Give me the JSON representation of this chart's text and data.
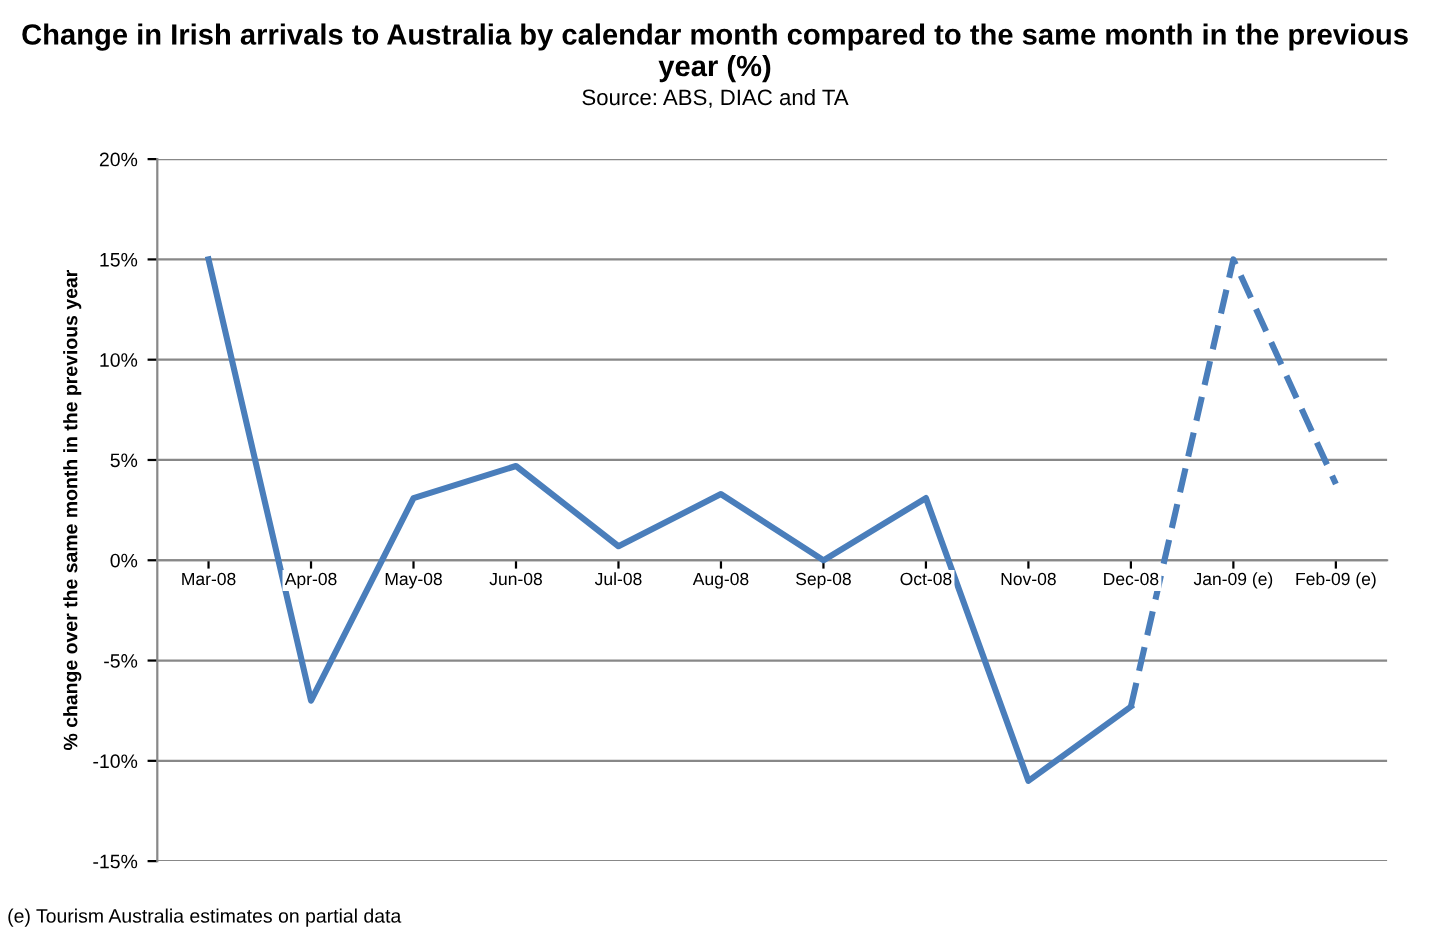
{
  "chart_data": {
    "type": "line",
    "title": "Change in Irish arrivals to Australia by calendar month compared to the same month in the previous year (%)",
    "subtitle": "Source: ABS, DIAC and TA",
    "ylabel": "% change over the same month in the previous year",
    "categories": [
      "Mar-08",
      "Apr-08",
      "May-08",
      "Jun-08",
      "Jul-08",
      "Aug-08",
      "Sep-08",
      "Oct-08",
      "Nov-08",
      "Dec-08",
      "Jan-09 (e)",
      "Feb-09 (e)"
    ],
    "series": [
      {
        "color": "#4a7ebb",
        "line_style": "solid",
        "values": [
          15,
          -7,
          3.1,
          4.7,
          0.7,
          3.3,
          0,
          3.1,
          -11,
          -7.3,
          null,
          null
        ]
      },
      {
        "color": "#4a7ebb",
        "line_style": "dashed",
        "values": [
          null,
          null,
          null,
          null,
          null,
          null,
          null,
          null,
          null,
          -7.3,
          15,
          3.8
        ]
      }
    ],
    "ylim": [
      -15,
      20
    ],
    "yticks": [
      {
        "value": -15,
        "label": "-15%"
      },
      {
        "value": -10,
        "label": "-10%"
      },
      {
        "value": -5,
        "label": "-5%"
      },
      {
        "value": 0,
        "label": "0%"
      },
      {
        "value": 5,
        "label": "5%"
      },
      {
        "value": 10,
        "label": "10%"
      },
      {
        "value": 15,
        "label": "15%"
      },
      {
        "value": 20,
        "label": "20%"
      }
    ],
    "grid": "y",
    "legend": false,
    "marker": "none",
    "annotations": [
      "(e) Tourism Australia estimates on partial data"
    ]
  }
}
